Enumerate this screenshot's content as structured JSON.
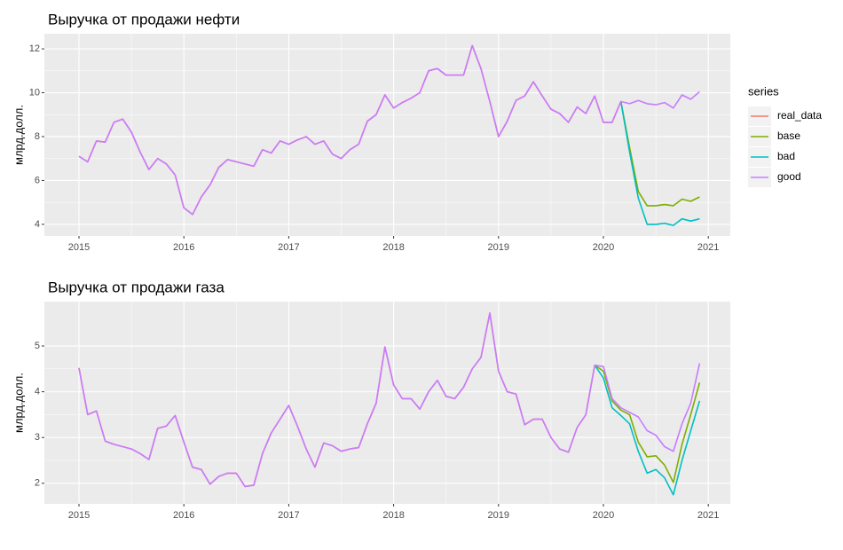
{
  "chart_data": [
    {
      "type": "line",
      "title": "Выручка от продажи нефти",
      "y_label": "млрд.долл.",
      "legend_title": "series",
      "legend": "right",
      "x": [
        2015,
        2015.083,
        2015.167,
        2015.25,
        2015.333,
        2015.417,
        2015.5,
        2015.583,
        2015.667,
        2015.75,
        2015.833,
        2015.917,
        2016,
        2016.083,
        2016.167,
        2016.25,
        2016.333,
        2016.417,
        2016.5,
        2016.583,
        2016.667,
        2016.75,
        2016.833,
        2016.917,
        2017,
        2017.083,
        2017.167,
        2017.25,
        2017.333,
        2017.417,
        2017.5,
        2017.583,
        2017.667,
        2017.75,
        2017.833,
        2017.917,
        2018,
        2018.083,
        2018.167,
        2018.25,
        2018.333,
        2018.417,
        2018.5,
        2018.583,
        2018.667,
        2018.75,
        2018.833,
        2018.917,
        2019,
        2019.083,
        2019.167,
        2019.25,
        2019.333,
        2019.417,
        2019.5,
        2019.583,
        2019.667,
        2019.75,
        2019.833,
        2019.917,
        2020,
        2020.083,
        2020.167,
        2020.25,
        2020.333,
        2020.417,
        2020.5,
        2020.583,
        2020.667,
        2020.75,
        2020.833,
        2020.917
      ],
      "xlim": [
        2014.67,
        2021.21
      ],
      "xticks": [
        2015,
        2016,
        2017,
        2018,
        2019,
        2020,
        2021
      ],
      "ylim": [
        3.47,
        12.69
      ],
      "yticks": [
        4,
        6,
        8,
        10,
        12
      ],
      "grid": true,
      "series": [
        {
          "name": "real_data",
          "color": "#F8766D",
          "values": [
            7.1,
            6.85,
            7.8,
            7.75,
            8.65,
            8.8,
            8.2,
            7.3,
            6.5,
            7.0,
            6.75,
            6.25,
            4.75,
            4.45,
            5.25,
            5.8,
            6.6,
            6.95,
            6.85,
            6.75,
            6.65,
            7.4,
            7.25,
            7.8,
            7.65,
            7.85,
            8.0,
            7.65,
            7.8,
            7.2,
            7.0,
            7.4,
            7.65,
            8.7,
            9.0,
            9.9,
            9.3,
            9.55,
            9.75,
            10.0,
            11.0,
            11.1,
            10.8,
            10.8,
            10.8,
            12.15,
            11.1,
            9.6,
            8.0,
            8.7,
            9.65,
            9.85,
            10.5,
            9.85,
            9.25,
            9.05,
            8.65,
            9.35,
            9.05,
            9.85,
            8.65,
            8.65,
            9.6,
            null,
            null,
            null,
            null,
            null,
            null,
            null,
            null,
            null
          ]
        },
        {
          "name": "base",
          "color": "#7CAE00",
          "values": [
            null,
            null,
            null,
            null,
            null,
            null,
            null,
            null,
            null,
            null,
            null,
            null,
            null,
            null,
            null,
            null,
            null,
            null,
            null,
            null,
            null,
            null,
            null,
            null,
            null,
            null,
            null,
            null,
            null,
            null,
            null,
            null,
            null,
            null,
            null,
            null,
            null,
            null,
            null,
            null,
            null,
            null,
            null,
            null,
            null,
            null,
            null,
            null,
            null,
            null,
            null,
            null,
            null,
            null,
            null,
            null,
            null,
            null,
            null,
            null,
            null,
            null,
            9.6,
            7.5,
            5.5,
            4.85,
            4.85,
            4.9,
            4.85,
            5.15,
            5.05,
            5.25
          ]
        },
        {
          "name": "bad",
          "color": "#00BFC4",
          "values": [
            null,
            null,
            null,
            null,
            null,
            null,
            null,
            null,
            null,
            null,
            null,
            null,
            null,
            null,
            null,
            null,
            null,
            null,
            null,
            null,
            null,
            null,
            null,
            null,
            null,
            null,
            null,
            null,
            null,
            null,
            null,
            null,
            null,
            null,
            null,
            null,
            null,
            null,
            null,
            null,
            null,
            null,
            null,
            null,
            null,
            null,
            null,
            null,
            null,
            null,
            null,
            null,
            null,
            null,
            null,
            null,
            null,
            null,
            null,
            null,
            null,
            null,
            9.6,
            7.3,
            5.2,
            4.0,
            4.0,
            4.05,
            3.95,
            4.25,
            4.15,
            4.25
          ]
        },
        {
          "name": "good",
          "color": "#C77CFF",
          "values": [
            7.1,
            6.85,
            7.8,
            7.75,
            8.65,
            8.8,
            8.2,
            7.3,
            6.5,
            7.0,
            6.75,
            6.25,
            4.75,
            4.45,
            5.25,
            5.8,
            6.6,
            6.95,
            6.85,
            6.75,
            6.65,
            7.4,
            7.25,
            7.8,
            7.65,
            7.85,
            8.0,
            7.65,
            7.8,
            7.2,
            7.0,
            7.4,
            7.65,
            8.7,
            9.0,
            9.9,
            9.3,
            9.55,
            9.75,
            10.0,
            11.0,
            11.1,
            10.8,
            10.8,
            10.8,
            12.15,
            11.1,
            9.6,
            8.0,
            8.7,
            9.65,
            9.85,
            10.5,
            9.85,
            9.25,
            9.05,
            8.65,
            9.35,
            9.05,
            9.85,
            8.65,
            8.65,
            9.6,
            9.5,
            9.65,
            9.5,
            9.45,
            9.55,
            9.3,
            9.9,
            9.7,
            10.05
          ]
        }
      ]
    },
    {
      "type": "line",
      "title": "Выручка от продажи газа",
      "y_label": "млрд.долл.",
      "x": [
        2015,
        2015.083,
        2015.167,
        2015.25,
        2015.333,
        2015.417,
        2015.5,
        2015.583,
        2015.667,
        2015.75,
        2015.833,
        2015.917,
        2016,
        2016.083,
        2016.167,
        2016.25,
        2016.333,
        2016.417,
        2016.5,
        2016.583,
        2016.667,
        2016.75,
        2016.833,
        2016.917,
        2017,
        2017.083,
        2017.167,
        2017.25,
        2017.333,
        2017.417,
        2017.5,
        2017.583,
        2017.667,
        2017.75,
        2017.833,
        2017.917,
        2018,
        2018.083,
        2018.167,
        2018.25,
        2018.333,
        2018.417,
        2018.5,
        2018.583,
        2018.667,
        2018.75,
        2018.833,
        2018.917,
        2019,
        2019.083,
        2019.167,
        2019.25,
        2019.333,
        2019.417,
        2019.5,
        2019.583,
        2019.667,
        2019.75,
        2019.833,
        2019.917,
        2020,
        2020.083,
        2020.167,
        2020.25,
        2020.333,
        2020.417,
        2020.5,
        2020.583,
        2020.667,
        2020.75,
        2020.833,
        2020.917
      ],
      "xlim": [
        2014.67,
        2021.21
      ],
      "xticks": [
        2015,
        2016,
        2017,
        2018,
        2019,
        2020,
        2021
      ],
      "ylim": [
        1.55,
        5.97
      ],
      "yticks": [
        2,
        3,
        4,
        5
      ],
      "grid": true,
      "series": [
        {
          "name": "real_data",
          "color": "#F8766D",
          "values": [
            4.52,
            3.5,
            3.58,
            2.92,
            2.85,
            2.8,
            2.75,
            2.65,
            2.52,
            3.2,
            3.25,
            3.48,
            2.9,
            2.35,
            2.3,
            1.98,
            2.15,
            2.22,
            2.22,
            1.93,
            1.96,
            2.65,
            3.1,
            3.4,
            3.7,
            3.25,
            2.75,
            2.35,
            2.88,
            2.82,
            2.7,
            2.75,
            2.78,
            3.3,
            3.75,
            4.98,
            4.15,
            3.85,
            3.85,
            3.62,
            4.0,
            4.25,
            3.9,
            3.85,
            4.1,
            4.5,
            4.75,
            5.72,
            4.45,
            4.0,
            3.95,
            3.28,
            3.4,
            3.4,
            3.0,
            2.75,
            2.68,
            3.22,
            3.5,
            4.58,
            null,
            null,
            null,
            null,
            null,
            null,
            null,
            null,
            null,
            null,
            null,
            null
          ]
        },
        {
          "name": "base",
          "color": "#7CAE00",
          "values": [
            null,
            null,
            null,
            null,
            null,
            null,
            null,
            null,
            null,
            null,
            null,
            null,
            null,
            null,
            null,
            null,
            null,
            null,
            null,
            null,
            null,
            null,
            null,
            null,
            null,
            null,
            null,
            null,
            null,
            null,
            null,
            null,
            null,
            null,
            null,
            null,
            null,
            null,
            null,
            null,
            null,
            null,
            null,
            null,
            null,
            null,
            null,
            null,
            null,
            null,
            null,
            null,
            null,
            null,
            null,
            null,
            null,
            null,
            null,
            4.58,
            4.45,
            3.8,
            3.6,
            3.5,
            2.9,
            2.58,
            2.6,
            2.4,
            2.02,
            2.85,
            3.5,
            4.2
          ]
        },
        {
          "name": "bad",
          "color": "#00BFC4",
          "values": [
            null,
            null,
            null,
            null,
            null,
            null,
            null,
            null,
            null,
            null,
            null,
            null,
            null,
            null,
            null,
            null,
            null,
            null,
            null,
            null,
            null,
            null,
            null,
            null,
            null,
            null,
            null,
            null,
            null,
            null,
            null,
            null,
            null,
            null,
            null,
            null,
            null,
            null,
            null,
            null,
            null,
            null,
            null,
            null,
            null,
            null,
            null,
            null,
            null,
            null,
            null,
            null,
            null,
            null,
            null,
            null,
            null,
            null,
            null,
            4.58,
            4.3,
            3.65,
            3.48,
            3.3,
            2.7,
            2.22,
            2.3,
            2.12,
            1.75,
            2.5,
            3.15,
            3.8
          ]
        },
        {
          "name": "good",
          "color": "#C77CFF",
          "values": [
            4.52,
            3.5,
            3.58,
            2.92,
            2.85,
            2.8,
            2.75,
            2.65,
            2.52,
            3.2,
            3.25,
            3.48,
            2.9,
            2.35,
            2.3,
            1.98,
            2.15,
            2.22,
            2.22,
            1.93,
            1.96,
            2.65,
            3.1,
            3.4,
            3.7,
            3.25,
            2.75,
            2.35,
            2.88,
            2.82,
            2.7,
            2.75,
            2.78,
            3.3,
            3.75,
            4.98,
            4.15,
            3.85,
            3.85,
            3.62,
            4.0,
            4.25,
            3.9,
            3.85,
            4.1,
            4.5,
            4.75,
            5.72,
            4.45,
            4.0,
            3.95,
            3.28,
            3.4,
            3.4,
            3.0,
            2.75,
            2.68,
            3.22,
            3.5,
            4.58,
            4.55,
            3.85,
            3.65,
            3.55,
            3.45,
            3.15,
            3.05,
            2.8,
            2.7,
            3.3,
            3.75,
            4.62
          ]
        }
      ]
    }
  ]
}
